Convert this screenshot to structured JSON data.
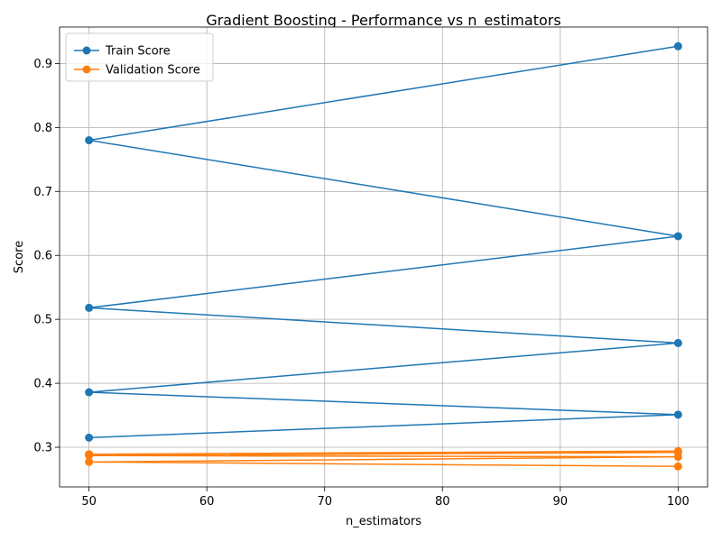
{
  "chart_data": {
    "type": "line",
    "title": "Gradient Boosting - Performance vs n_estimators",
    "xlabel": "n_estimators",
    "ylabel": "Score",
    "xlim": [
      47.5,
      102.5
    ],
    "ylim": [
      0.238,
      0.957
    ],
    "xticks": [
      50,
      60,
      70,
      80,
      90,
      100
    ],
    "yticks": [
      0.3,
      0.4,
      0.5,
      0.6,
      0.7,
      0.8,
      0.9
    ],
    "x_tick_labels": [
      "50",
      "60",
      "70",
      "80",
      "90",
      "100"
    ],
    "y_tick_labels": [
      "0.3",
      "0.4",
      "0.5",
      "0.6",
      "0.7",
      "0.8",
      "0.9"
    ],
    "grid": true,
    "legend_position": "upper-left",
    "series": [
      {
        "name": "Train Score",
        "color": "#1f77b4",
        "x": [
          100,
          50,
          100,
          50,
          100,
          50,
          100,
          50
        ],
        "y": [
          0.927,
          0.78,
          0.63,
          0.518,
          0.463,
          0.386,
          0.351,
          0.315
        ]
      },
      {
        "name": "Validation Score",
        "color": "#ff7f0e",
        "x": [
          100,
          50,
          100,
          50,
          100,
          50,
          100,
          50
        ],
        "y": [
          0.27,
          0.277,
          0.285,
          0.287,
          0.292,
          0.289,
          0.294,
          0.289
        ]
      }
    ]
  }
}
